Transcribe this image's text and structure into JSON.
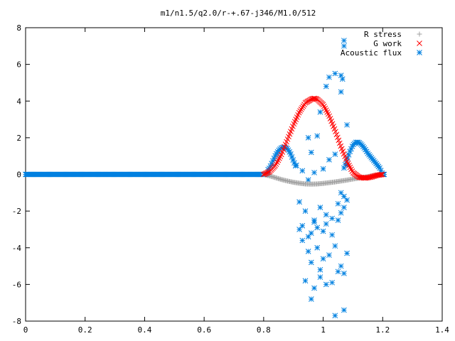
{
  "chart_data": {
    "type": "scatter",
    "title": "m1/n1.5/q2.0/r-+.67-j346/M1.0/512",
    "xlabel": "",
    "ylabel": "",
    "xlim": [
      0,
      1.4
    ],
    "ylim": [
      -8,
      8
    ],
    "x_ticks": [
      0,
      0.2,
      0.4,
      0.6,
      0.8,
      1,
      1.2,
      1.4
    ],
    "x_tick_labels": [
      "0",
      "0.2",
      "0.4",
      "0.6",
      "0.8",
      "1",
      "1.2",
      "1.4"
    ],
    "y_ticks": [
      -8,
      -6,
      -4,
      -2,
      0,
      2,
      4,
      6,
      8
    ],
    "y_tick_labels": [
      "-8",
      "-6",
      "-4",
      "-2",
      "0",
      "2",
      "4",
      "6",
      "8"
    ],
    "grid": false,
    "legend_position": "top-right",
    "series": [
      {
        "name": "R stress",
        "marker": "plus",
        "color": "#a0a0a0",
        "x": [
          0.0,
          0.2,
          0.4,
          0.6,
          0.8,
          0.82,
          0.84,
          0.86,
          0.88,
          0.9,
          0.92,
          0.94,
          0.96,
          0.98,
          1.0,
          1.02,
          1.04,
          1.06,
          1.08,
          1.1,
          1.12,
          1.14,
          1.16,
          1.18,
          1.2
        ],
        "y": [
          0,
          0,
          0,
          0,
          0,
          -0.08,
          -0.18,
          -0.28,
          -0.36,
          -0.43,
          -0.48,
          -0.52,
          -0.53,
          -0.52,
          -0.49,
          -0.45,
          -0.41,
          -0.36,
          -0.31,
          -0.25,
          -0.2,
          -0.15,
          -0.09,
          -0.04,
          0
        ]
      },
      {
        "name": "G work",
        "marker": "cross",
        "color": "#ff0000",
        "x": [
          0.8,
          0.82,
          0.84,
          0.86,
          0.88,
          0.9,
          0.92,
          0.94,
          0.96,
          0.97,
          0.98,
          1.0,
          1.02,
          1.04,
          1.06,
          1.08,
          1.1,
          1.12,
          1.14,
          1.16,
          1.18,
          1.2
        ],
        "y": [
          0,
          0.15,
          0.5,
          1.1,
          1.9,
          2.7,
          3.4,
          3.9,
          4.1,
          4.15,
          4.1,
          3.8,
          3.2,
          2.4,
          1.5,
          0.7,
          0.1,
          -0.15,
          -0.2,
          -0.15,
          -0.05,
          0
        ]
      },
      {
        "name": "Acoustic flux",
        "marker": "star",
        "color": "#0080e0",
        "x": [
          0.0,
          0.2,
          0.4,
          0.6,
          0.8,
          0.82,
          0.83,
          0.84,
          0.85,
          0.86,
          0.87,
          0.88,
          0.89,
          0.9,
          0.91,
          1.07,
          1.08,
          1.09,
          1.1,
          1.11,
          1.12,
          1.13,
          1.14,
          1.15,
          1.16,
          1.17,
          1.18,
          1.19,
          1.2,
          0.91,
          0.93,
          0.95,
          0.96,
          0.98,
          1.0,
          1.02,
          1.04,
          1.06,
          1.08,
          0.92,
          0.94,
          0.97,
          0.99,
          1.01,
          1.03,
          1.05,
          1.07,
          0.92,
          0.93,
          0.95,
          0.96,
          0.97,
          0.98,
          1.0,
          1.01,
          1.03,
          1.05,
          1.06,
          1.07,
          1.08,
          0.93,
          0.95,
          0.96,
          0.98,
          0.99,
          1.0,
          1.02,
          1.04,
          1.06,
          1.07,
          1.08,
          0.94,
          0.96,
          0.97,
          0.99,
          1.01,
          1.03,
          1.04,
          1.05,
          1.07,
          0.95,
          0.97,
          0.99,
          1.01,
          1.02,
          1.04,
          1.06,
          1.08
        ],
        "y": [
          0,
          0,
          0,
          0,
          0,
          0.35,
          0.7,
          1.05,
          1.3,
          1.45,
          1.5,
          1.4,
          1.15,
          0.75,
          0.35,
          0.35,
          0.8,
          1.25,
          1.6,
          1.75,
          1.75,
          1.6,
          1.4,
          1.15,
          0.95,
          0.75,
          0.55,
          0.35,
          0,
          0.5,
          0.2,
          -0.3,
          1.2,
          2.1,
          0.3,
          0.8,
          1.1,
          -1.0,
          0.5,
          -1.5,
          -2.0,
          -2.5,
          -1.8,
          -2.2,
          -2.4,
          -1.6,
          -1.2,
          -3.0,
          -2.8,
          -3.4,
          -3.2,
          -2.6,
          -2.9,
          -3.1,
          -2.7,
          -3.3,
          -2.5,
          -2.1,
          -1.8,
          -1.4,
          -3.6,
          -4.2,
          -4.8,
          -4.0,
          -5.2,
          -4.6,
          -4.4,
          -3.9,
          -5.0,
          -5.4,
          -4.3,
          -5.8,
          -6.8,
          -6.2,
          -5.6,
          -6.0,
          -5.9,
          -7.7,
          -5.3,
          -7.4,
          2.0,
          0.1,
          3.4,
          4.8,
          5.3,
          5.5,
          4.5,
          2.7
        ]
      }
    ],
    "extra_points": {
      "acoustic_high": {
        "x": [
          1.07,
          1.07,
          1.06,
          1.065
        ],
        "y": [
          7.3,
          7.0,
          5.4,
          5.2
        ]
      }
    }
  }
}
